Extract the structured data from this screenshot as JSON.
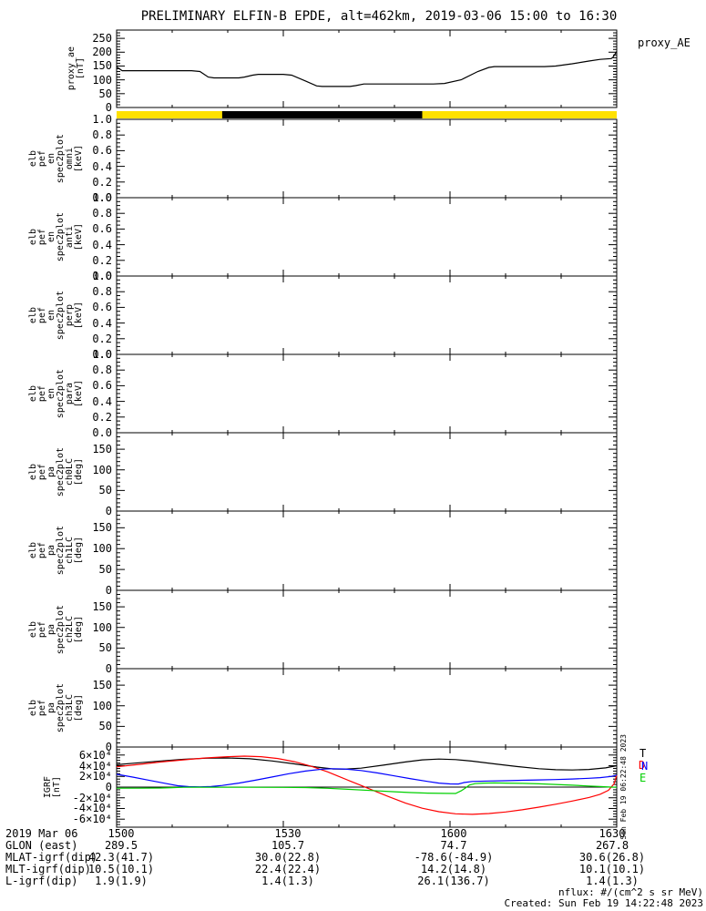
{
  "title": "PRELIMINARY ELFIN-B EPDE, alt=462km, 2019-03-06 15:00 to 16:30",
  "proxy_right_label": "proxy_AE",
  "watermark_vertical": "Sun Feb 19 06:22:48 2023",
  "footnotes": {
    "flux_units": "nflux: #/(cm^2 s sr MeV)",
    "created": "Created: Sun Feb 19 14:22:48 2023"
  },
  "colors": {
    "frame": "#000000",
    "bar_yellow": "#ffe100",
    "bar_black": "#000000",
    "igrf_total": "#000000",
    "igrf_down": "#ff0000",
    "igrf_north": "#0000ff",
    "igrf_east": "#00d000"
  },
  "igrf_legend": [
    {
      "label": "T",
      "color": "#000000"
    },
    {
      "label": "D",
      "color": "#ff0000"
    },
    {
      "label": "N",
      "color": "#0000ff"
    },
    {
      "label": "E",
      "color": "#00d000"
    }
  ],
  "bottom_table": {
    "rows": [
      {
        "label": "2019 Mar 06",
        "values": [
          "1500",
          "1530",
          "1600",
          "1630"
        ]
      },
      {
        "label": "GLON (east)",
        "values": [
          "289.5",
          "105.7",
          "74.7",
          "267.8"
        ]
      },
      {
        "label": "MLAT-igrf(dip)",
        "values": [
          "42.3(41.7)",
          "30.0(22.8)",
          "-78.6(-84.9)",
          "30.6(26.8)"
        ]
      },
      {
        "label": "MLT-igrf(dip)",
        "values": [
          "10.5(10.1)",
          "22.4(22.4)",
          "14.2(14.8)",
          "10.1(10.1)"
        ]
      },
      {
        "label": "L-igrf(dip)",
        "values": [
          "1.9(1.9)",
          "1.4(1.3)",
          "26.1(136.7)",
          "1.4(1.3)"
        ]
      }
    ]
  },
  "chart_data": [
    {
      "id": "proxy_ae",
      "type": "line",
      "ylabel_lines": [
        "proxy_ae",
        "[nT]"
      ],
      "ylim": [
        0,
        280
      ],
      "yticks": [
        {
          "v": 0,
          "label": "0"
        },
        {
          "v": 50,
          "label": "50"
        },
        {
          "v": 100,
          "label": "100"
        },
        {
          "v": 150,
          "label": "150"
        },
        {
          "v": 200,
          "label": "200"
        },
        {
          "v": 250,
          "label": "250"
        }
      ],
      "x_minutes_after_1500": [
        0,
        90
      ],
      "xticks_minutes": [
        10,
        20,
        30,
        40,
        50,
        60,
        70,
        80
      ],
      "series": [
        {
          "name": "proxy_AE",
          "color": "#000000",
          "points": [
            [
              0,
              147
            ],
            [
              1,
              133
            ],
            [
              13.5,
              133
            ],
            [
              15,
              130
            ],
            [
              16.5,
              110
            ],
            [
              17.5,
              107
            ],
            [
              22,
              107
            ],
            [
              23,
              110
            ],
            [
              24.5,
              117
            ],
            [
              25.5,
              120
            ],
            [
              30,
              120
            ],
            [
              31.5,
              117
            ],
            [
              34,
              96
            ],
            [
              36,
              78
            ],
            [
              37,
              76
            ],
            [
              42,
              76
            ],
            [
              43,
              79
            ],
            [
              44.5,
              85
            ],
            [
              57,
              85
            ],
            [
              59,
              87
            ],
            [
              62,
              100
            ],
            [
              65,
              130
            ],
            [
              67,
              145
            ],
            [
              68,
              148
            ],
            [
              77,
              148
            ],
            [
              79,
              150
            ],
            [
              82,
              158
            ],
            [
              85,
              168
            ],
            [
              87,
              174
            ],
            [
              89,
              177
            ],
            [
              89.3,
              181
            ],
            [
              90,
              203
            ]
          ]
        }
      ]
    },
    {
      "id": "state_bar",
      "type": "band",
      "segments": [
        {
          "color": "#ffe100",
          "start": 0,
          "end": 90
        },
        {
          "color": "#000000",
          "start": 19,
          "end": 55
        }
      ]
    },
    {
      "id": "en_omni",
      "type": "empty-spectrogram",
      "ylabel_lines": [
        "elb",
        "pef",
        "en",
        "spec2plot",
        "omni",
        "[keV]"
      ],
      "ylim": [
        0,
        1
      ],
      "yticks": [
        {
          "v": 1.0,
          "label": "1.0"
        },
        {
          "v": 0.8,
          "label": "0.8"
        },
        {
          "v": 0.6,
          "label": "0.6"
        },
        {
          "v": 0.4,
          "label": "0.4"
        },
        {
          "v": 0.2,
          "label": "0.2"
        },
        {
          "v": 0.0,
          "label": "0.0"
        }
      ],
      "series": []
    },
    {
      "id": "en_anti",
      "type": "empty-spectrogram",
      "ylabel_lines": [
        "elb",
        "pef",
        "en",
        "spec2plot",
        "anti",
        "[keV]"
      ],
      "ylim": [
        0,
        1
      ],
      "yticks": [
        {
          "v": 1.0,
          "label": "1.0"
        },
        {
          "v": 0.8,
          "label": "0.8"
        },
        {
          "v": 0.6,
          "label": "0.6"
        },
        {
          "v": 0.4,
          "label": "0.4"
        },
        {
          "v": 0.2,
          "label": "0.2"
        },
        {
          "v": 0.0,
          "label": "0.0"
        }
      ],
      "series": []
    },
    {
      "id": "en_perp",
      "type": "empty-spectrogram",
      "ylabel_lines": [
        "elb",
        "pef",
        "en",
        "spec2plot",
        "perp",
        "[keV]"
      ],
      "ylim": [
        0,
        1
      ],
      "yticks": [
        {
          "v": 1.0,
          "label": "1.0"
        },
        {
          "v": 0.8,
          "label": "0.8"
        },
        {
          "v": 0.6,
          "label": "0.6"
        },
        {
          "v": 0.4,
          "label": "0.4"
        },
        {
          "v": 0.2,
          "label": "0.2"
        },
        {
          "v": 0.0,
          "label": "0.0"
        }
      ],
      "series": []
    },
    {
      "id": "en_para",
      "type": "empty-spectrogram",
      "ylabel_lines": [
        "elb",
        "pef",
        "en",
        "spec2plot",
        "para",
        "[keV]"
      ],
      "ylim": [
        0,
        1
      ],
      "yticks": [
        {
          "v": 1.0,
          "label": "1.0"
        },
        {
          "v": 0.8,
          "label": "0.8"
        },
        {
          "v": 0.6,
          "label": "0.6"
        },
        {
          "v": 0.4,
          "label": "0.4"
        },
        {
          "v": 0.2,
          "label": "0.2"
        },
        {
          "v": 0.0,
          "label": "0.0"
        }
      ],
      "series": []
    },
    {
      "id": "pa_ch0lc",
      "type": "empty-spectrogram",
      "ylabel_lines": [
        "elb",
        "pef",
        "pa",
        "spec2plot",
        "ch0LC",
        "[deg]"
      ],
      "ylim": [
        0,
        190
      ],
      "yticks": [
        {
          "v": 150,
          "label": "150"
        },
        {
          "v": 100,
          "label": "100"
        },
        {
          "v": 50,
          "label": "50"
        },
        {
          "v": 0,
          "label": "0"
        }
      ],
      "series": []
    },
    {
      "id": "pa_ch1lc",
      "type": "empty-spectrogram",
      "ylabel_lines": [
        "elb",
        "pef",
        "pa",
        "spec2plot",
        "ch1LC",
        "[deg]"
      ],
      "ylim": [
        0,
        190
      ],
      "yticks": [
        {
          "v": 150,
          "label": "150"
        },
        {
          "v": 100,
          "label": "100"
        },
        {
          "v": 50,
          "label": "50"
        },
        {
          "v": 0,
          "label": "0"
        }
      ],
      "series": []
    },
    {
      "id": "pa_ch2lc",
      "type": "empty-spectrogram",
      "ylabel_lines": [
        "elb",
        "pef",
        "pa",
        "spec2plot",
        "ch2LC",
        "[deg]"
      ],
      "ylim": [
        0,
        190
      ],
      "yticks": [
        {
          "v": 150,
          "label": "150"
        },
        {
          "v": 100,
          "label": "100"
        },
        {
          "v": 50,
          "label": "50"
        },
        {
          "v": 0,
          "label": "0"
        }
      ],
      "series": []
    },
    {
      "id": "pa_ch3lc",
      "type": "empty-spectrogram",
      "ylabel_lines": [
        "elb",
        "pef",
        "pa",
        "spec2plot",
        "ch3LC",
        "[deg]"
      ],
      "ylim": [
        0,
        190
      ],
      "yticks": [
        {
          "v": 150,
          "label": "150"
        },
        {
          "v": 100,
          "label": "100"
        },
        {
          "v": 50,
          "label": "50"
        },
        {
          "v": 0,
          "label": "0"
        }
      ],
      "series": []
    },
    {
      "id": "igrf",
      "type": "line",
      "zero_line": true,
      "ylabel_lines": [
        "IGRF",
        "[nT]"
      ],
      "ylim": [
        -75000,
        75000
      ],
      "yticks": [
        {
          "v": 60000,
          "label": "6×10⁴"
        },
        {
          "v": 40000,
          "label": "4×10⁴"
        },
        {
          "v": 20000,
          "label": "2×10⁴"
        },
        {
          "v": 0,
          "label": "0"
        },
        {
          "v": -20000,
          "label": "-2×10⁴"
        },
        {
          "v": -40000,
          "label": "-4×10⁴"
        },
        {
          "v": -60000,
          "label": "-6×10⁴"
        }
      ],
      "series": [
        {
          "name": "T",
          "color": "#000000",
          "points": [
            [
              0,
              42000
            ],
            [
              4,
              45500
            ],
            [
              8,
              49000
            ],
            [
              12,
              52000
            ],
            [
              16,
              54000
            ],
            [
              20,
              54500
            ],
            [
              24,
              53000
            ],
            [
              28,
              49000
            ],
            [
              32,
              43500
            ],
            [
              36,
              37500
            ],
            [
              39,
              34000
            ],
            [
              41,
              33500
            ],
            [
              44,
              35500
            ],
            [
              48,
              41000
            ],
            [
              52,
              47000
            ],
            [
              55,
              51000
            ],
            [
              58,
              52500
            ],
            [
              61,
              51500
            ],
            [
              64,
              48500
            ],
            [
              68,
              43500
            ],
            [
              72,
              38500
            ],
            [
              76,
              34500
            ],
            [
              79,
              32500
            ],
            [
              82,
              32000
            ],
            [
              85,
              33000
            ],
            [
              88,
              36000
            ],
            [
              90,
              40000
            ]
          ]
        },
        {
          "name": "D",
          "color": "#ff0000",
          "points": [
            [
              0,
              38000
            ],
            [
              4,
              42500
            ],
            [
              8,
              47000
            ],
            [
              12,
              51000
            ],
            [
              16,
              54500
            ],
            [
              20,
              57000
            ],
            [
              23,
              58000
            ],
            [
              26,
              57000
            ],
            [
              29,
              53500
            ],
            [
              32,
              47500
            ],
            [
              35,
              39000
            ],
            [
              38,
              28500
            ],
            [
              40,
              20000
            ],
            [
              42,
              11500
            ],
            [
              44,
              3000
            ],
            [
              46,
              -5500
            ],
            [
              49,
              -18000
            ],
            [
              52,
              -30000
            ],
            [
              55,
              -39500
            ],
            [
              58,
              -46000
            ],
            [
              61,
              -50000
            ],
            [
              64,
              -51000
            ],
            [
              67,
              -49500
            ],
            [
              70,
              -46500
            ],
            [
              73,
              -42500
            ],
            [
              76,
              -37500
            ],
            [
              79,
              -32000
            ],
            [
              82,
              -26000
            ],
            [
              85,
              -19500
            ],
            [
              87,
              -13500
            ],
            [
              88.5,
              -6000
            ],
            [
              89.5,
              6000
            ],
            [
              90,
              22000
            ]
          ]
        },
        {
          "name": "N",
          "color": "#0000ff",
          "points": [
            [
              0,
              24000
            ],
            [
              3,
              18500
            ],
            [
              6,
              12500
            ],
            [
              9,
              6500
            ],
            [
              11,
              2500
            ],
            [
              13,
              800
            ],
            [
              15,
              500
            ],
            [
              17,
              1000
            ],
            [
              19,
              3000
            ],
            [
              22,
              7500
            ],
            [
              25,
              13000
            ],
            [
              28,
              19000
            ],
            [
              31,
              25000
            ],
            [
              34,
              30000
            ],
            [
              37,
              33500
            ],
            [
              39,
              34500
            ],
            [
              41,
              34000
            ],
            [
              44,
              31000
            ],
            [
              47,
              26500
            ],
            [
              50,
              21000
            ],
            [
              53,
              15500
            ],
            [
              56,
              10500
            ],
            [
              58,
              7500
            ],
            [
              60,
              6000
            ],
            [
              61.5,
              5800
            ],
            [
              62.5,
              8500
            ],
            [
              64,
              10500
            ],
            [
              67,
              11500
            ],
            [
              70,
              12000
            ],
            [
              73,
              12800
            ],
            [
              76,
              13500
            ],
            [
              79,
              14200
            ],
            [
              82,
              15200
            ],
            [
              85,
              16500
            ],
            [
              87,
              17800
            ],
            [
              89,
              20000
            ],
            [
              90,
              22500
            ]
          ]
        },
        {
          "name": "E",
          "color": "#00d000",
          "points": [
            [
              0,
              -2000
            ],
            [
              4,
              -2000
            ],
            [
              8,
              -1700
            ],
            [
              10,
              -1000
            ],
            [
              12,
              -400
            ],
            [
              14,
              -100
            ],
            [
              18,
              -300
            ],
            [
              24,
              -300
            ],
            [
              30,
              -500
            ],
            [
              34,
              -900
            ],
            [
              38,
              -2200
            ],
            [
              42,
              -4200
            ],
            [
              46,
              -6500
            ],
            [
              50,
              -8700
            ],
            [
              53,
              -10200
            ],
            [
              56,
              -11200
            ],
            [
              59,
              -11800
            ],
            [
              61,
              -12000
            ],
            [
              62,
              -7000
            ],
            [
              62.8,
              -1500
            ],
            [
              63.5,
              4000
            ],
            [
              64.5,
              6500
            ],
            [
              66,
              7500
            ],
            [
              68,
              7800
            ],
            [
              70,
              7500
            ],
            [
              73,
              7000
            ],
            [
              76,
              6200
            ],
            [
              79,
              5000
            ],
            [
              82,
              3500
            ],
            [
              85,
              2000
            ],
            [
              87,
              1000
            ],
            [
              89,
              0
            ],
            [
              90,
              -400
            ]
          ]
        }
      ]
    }
  ]
}
